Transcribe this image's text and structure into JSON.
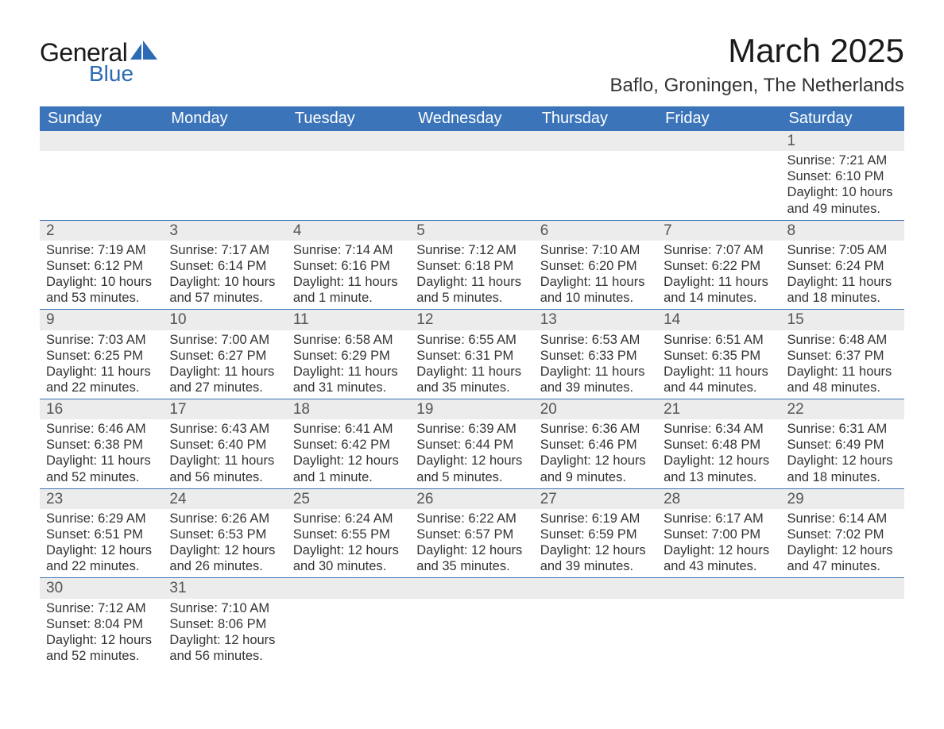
{
  "logo": {
    "general": "General",
    "blue": "Blue",
    "sail_color": "#2d6bb5"
  },
  "title": "March 2025",
  "location": "Baflo, Groningen, The Netherlands",
  "colors": {
    "header_bg": "#3b74b9",
    "header_text": "#ffffff",
    "daynum_bg": "#ececec",
    "text": "#333333",
    "row_border": "#3b74b9"
  },
  "typography": {
    "title_fontsize": 42,
    "location_fontsize": 24,
    "dayheader_fontsize": 20,
    "cell_fontsize": 16.5,
    "daynum_fontsize": 19
  },
  "day_headers": [
    "Sunday",
    "Monday",
    "Tuesday",
    "Wednesday",
    "Thursday",
    "Friday",
    "Saturday"
  ],
  "weeks": [
    [
      null,
      null,
      null,
      null,
      null,
      null,
      {
        "n": "1",
        "sunrise": "Sunrise: 7:21 AM",
        "sunset": "Sunset: 6:10 PM",
        "daylight": "Daylight: 10 hours and 49 minutes."
      }
    ],
    [
      {
        "n": "2",
        "sunrise": "Sunrise: 7:19 AM",
        "sunset": "Sunset: 6:12 PM",
        "daylight": "Daylight: 10 hours and 53 minutes."
      },
      {
        "n": "3",
        "sunrise": "Sunrise: 7:17 AM",
        "sunset": "Sunset: 6:14 PM",
        "daylight": "Daylight: 10 hours and 57 minutes."
      },
      {
        "n": "4",
        "sunrise": "Sunrise: 7:14 AM",
        "sunset": "Sunset: 6:16 PM",
        "daylight": "Daylight: 11 hours and 1 minute."
      },
      {
        "n": "5",
        "sunrise": "Sunrise: 7:12 AM",
        "sunset": "Sunset: 6:18 PM",
        "daylight": "Daylight: 11 hours and 5 minutes."
      },
      {
        "n": "6",
        "sunrise": "Sunrise: 7:10 AM",
        "sunset": "Sunset: 6:20 PM",
        "daylight": "Daylight: 11 hours and 10 minutes."
      },
      {
        "n": "7",
        "sunrise": "Sunrise: 7:07 AM",
        "sunset": "Sunset: 6:22 PM",
        "daylight": "Daylight: 11 hours and 14 minutes."
      },
      {
        "n": "8",
        "sunrise": "Sunrise: 7:05 AM",
        "sunset": "Sunset: 6:24 PM",
        "daylight": "Daylight: 11 hours and 18 minutes."
      }
    ],
    [
      {
        "n": "9",
        "sunrise": "Sunrise: 7:03 AM",
        "sunset": "Sunset: 6:25 PM",
        "daylight": "Daylight: 11 hours and 22 minutes."
      },
      {
        "n": "10",
        "sunrise": "Sunrise: 7:00 AM",
        "sunset": "Sunset: 6:27 PM",
        "daylight": "Daylight: 11 hours and 27 minutes."
      },
      {
        "n": "11",
        "sunrise": "Sunrise: 6:58 AM",
        "sunset": "Sunset: 6:29 PM",
        "daylight": "Daylight: 11 hours and 31 minutes."
      },
      {
        "n": "12",
        "sunrise": "Sunrise: 6:55 AM",
        "sunset": "Sunset: 6:31 PM",
        "daylight": "Daylight: 11 hours and 35 minutes."
      },
      {
        "n": "13",
        "sunrise": "Sunrise: 6:53 AM",
        "sunset": "Sunset: 6:33 PM",
        "daylight": "Daylight: 11 hours and 39 minutes."
      },
      {
        "n": "14",
        "sunrise": "Sunrise: 6:51 AM",
        "sunset": "Sunset: 6:35 PM",
        "daylight": "Daylight: 11 hours and 44 minutes."
      },
      {
        "n": "15",
        "sunrise": "Sunrise: 6:48 AM",
        "sunset": "Sunset: 6:37 PM",
        "daylight": "Daylight: 11 hours and 48 minutes."
      }
    ],
    [
      {
        "n": "16",
        "sunrise": "Sunrise: 6:46 AM",
        "sunset": "Sunset: 6:38 PM",
        "daylight": "Daylight: 11 hours and 52 minutes."
      },
      {
        "n": "17",
        "sunrise": "Sunrise: 6:43 AM",
        "sunset": "Sunset: 6:40 PM",
        "daylight": "Daylight: 11 hours and 56 minutes."
      },
      {
        "n": "18",
        "sunrise": "Sunrise: 6:41 AM",
        "sunset": "Sunset: 6:42 PM",
        "daylight": "Daylight: 12 hours and 1 minute."
      },
      {
        "n": "19",
        "sunrise": "Sunrise: 6:39 AM",
        "sunset": "Sunset: 6:44 PM",
        "daylight": "Daylight: 12 hours and 5 minutes."
      },
      {
        "n": "20",
        "sunrise": "Sunrise: 6:36 AM",
        "sunset": "Sunset: 6:46 PM",
        "daylight": "Daylight: 12 hours and 9 minutes."
      },
      {
        "n": "21",
        "sunrise": "Sunrise: 6:34 AM",
        "sunset": "Sunset: 6:48 PM",
        "daylight": "Daylight: 12 hours and 13 minutes."
      },
      {
        "n": "22",
        "sunrise": "Sunrise: 6:31 AM",
        "sunset": "Sunset: 6:49 PM",
        "daylight": "Daylight: 12 hours and 18 minutes."
      }
    ],
    [
      {
        "n": "23",
        "sunrise": "Sunrise: 6:29 AM",
        "sunset": "Sunset: 6:51 PM",
        "daylight": "Daylight: 12 hours and 22 minutes."
      },
      {
        "n": "24",
        "sunrise": "Sunrise: 6:26 AM",
        "sunset": "Sunset: 6:53 PM",
        "daylight": "Daylight: 12 hours and 26 minutes."
      },
      {
        "n": "25",
        "sunrise": "Sunrise: 6:24 AM",
        "sunset": "Sunset: 6:55 PM",
        "daylight": "Daylight: 12 hours and 30 minutes."
      },
      {
        "n": "26",
        "sunrise": "Sunrise: 6:22 AM",
        "sunset": "Sunset: 6:57 PM",
        "daylight": "Daylight: 12 hours and 35 minutes."
      },
      {
        "n": "27",
        "sunrise": "Sunrise: 6:19 AM",
        "sunset": "Sunset: 6:59 PM",
        "daylight": "Daylight: 12 hours and 39 minutes."
      },
      {
        "n": "28",
        "sunrise": "Sunrise: 6:17 AM",
        "sunset": "Sunset: 7:00 PM",
        "daylight": "Daylight: 12 hours and 43 minutes."
      },
      {
        "n": "29",
        "sunrise": "Sunrise: 6:14 AM",
        "sunset": "Sunset: 7:02 PM",
        "daylight": "Daylight: 12 hours and 47 minutes."
      }
    ],
    [
      {
        "n": "30",
        "sunrise": "Sunrise: 7:12 AM",
        "sunset": "Sunset: 8:04 PM",
        "daylight": "Daylight: 12 hours and 52 minutes."
      },
      {
        "n": "31",
        "sunrise": "Sunrise: 7:10 AM",
        "sunset": "Sunset: 8:06 PM",
        "daylight": "Daylight: 12 hours and 56 minutes."
      },
      null,
      null,
      null,
      null,
      null
    ]
  ]
}
